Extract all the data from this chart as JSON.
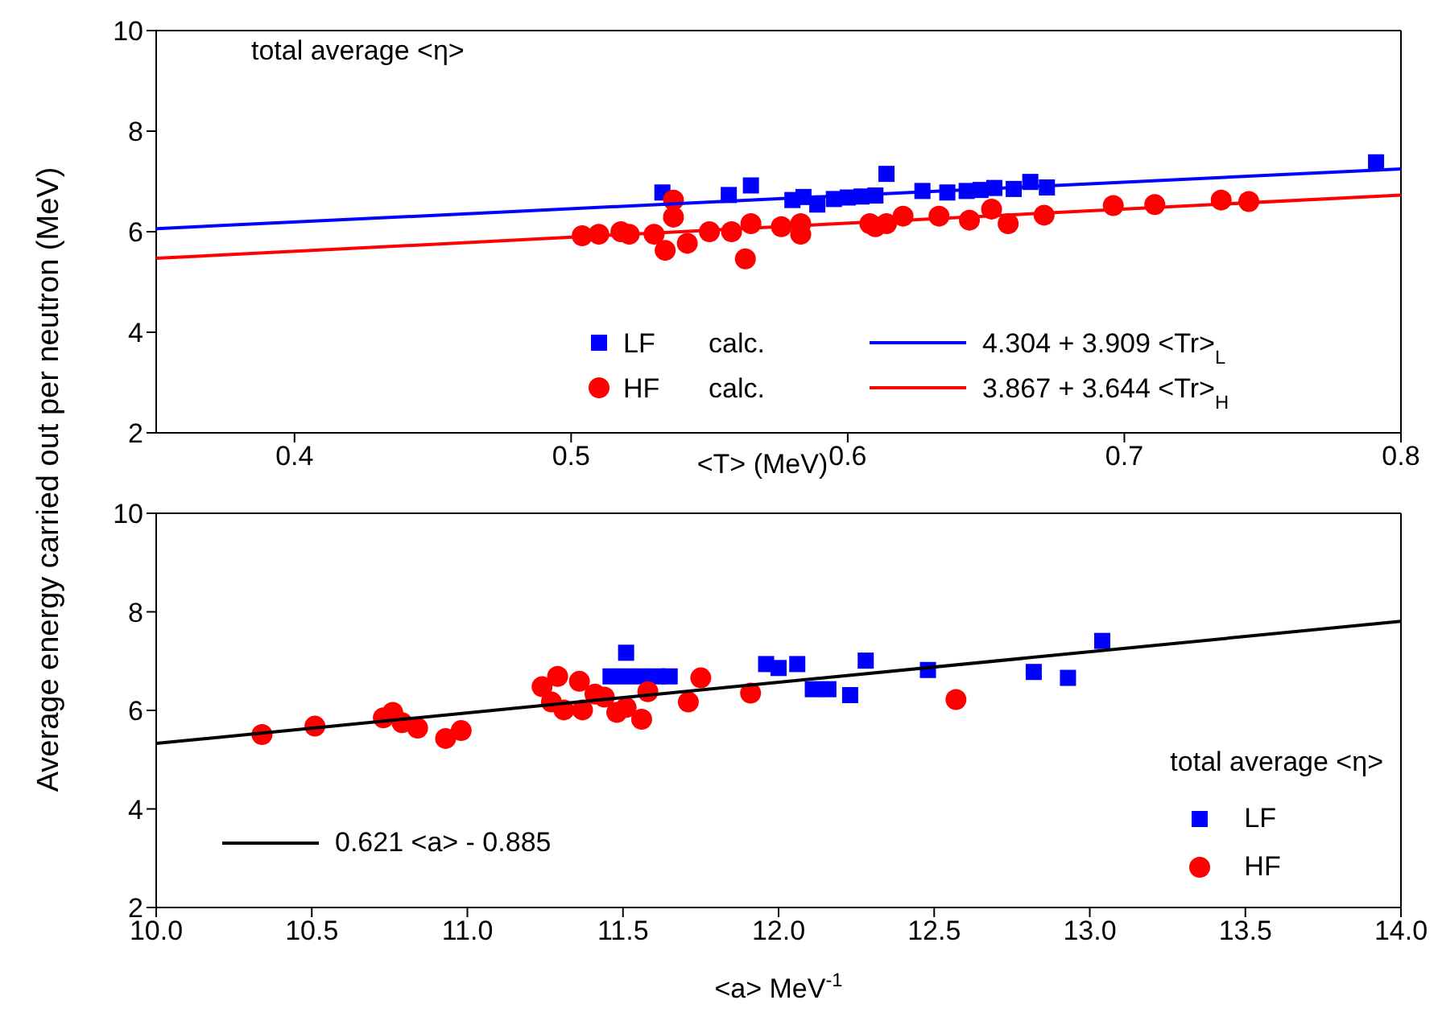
{
  "chart_data": [
    {
      "type": "scatter",
      "ylabel": "Average energy carried out per neutron (MeV)",
      "xlabel": "<T> (MeV)",
      "xlim": [
        0.35,
        0.8
      ],
      "xticks": [
        0.4,
        0.5,
        0.6,
        0.7,
        0.8
      ],
      "ylim": [
        2,
        10
      ],
      "yticks": [
        2,
        4,
        6,
        8,
        10
      ],
      "legend": "bottom right",
      "annotations": [
        "total average <η>",
        "calc.",
        "calc."
      ],
      "series": [
        {
          "name": "LF",
          "type": "scatter",
          "marker": "square",
          "color": "#0000ff",
          "x": [
            0.533,
            0.557,
            0.565,
            0.58,
            0.584,
            0.589,
            0.595,
            0.6,
            0.605,
            0.61,
            0.614,
            0.627,
            0.636,
            0.643,
            0.648,
            0.653,
            0.66,
            0.666,
            0.672,
            0.791
          ],
          "values": [
            6.78,
            6.73,
            6.92,
            6.63,
            6.69,
            6.54,
            6.65,
            6.68,
            6.7,
            6.72,
            7.15,
            6.81,
            6.78,
            6.81,
            6.83,
            6.87,
            6.85,
            6.99,
            6.88,
            7.38
          ]
        },
        {
          "name": "HF",
          "type": "scatter",
          "marker": "circle",
          "color": "#ff0000",
          "x": [
            0.504,
            0.51,
            0.518,
            0.521,
            0.53,
            0.534,
            0.537,
            0.537,
            0.542,
            0.55,
            0.558,
            0.563,
            0.565,
            0.576,
            0.583,
            0.583,
            0.608,
            0.61,
            0.614,
            0.62,
            0.633,
            0.644,
            0.652,
            0.658,
            0.671,
            0.696,
            0.711,
            0.735,
            0.745
          ],
          "values": [
            5.92,
            5.95,
            6.0,
            5.95,
            5.95,
            5.63,
            6.63,
            6.29,
            5.77,
            6.0,
            6.0,
            5.46,
            6.16,
            6.1,
            6.16,
            5.95,
            6.16,
            6.1,
            6.16,
            6.31,
            6.31,
            6.23,
            6.45,
            6.16,
            6.33,
            6.52,
            6.54,
            6.63,
            6.6
          ]
        },
        {
          "name": "4.304 + 3.909 <Tr>$_{L}$",
          "type": "line",
          "color": "#0000ff",
          "x": [
            0.35,
            0.8
          ],
          "values": [
            6.06,
            7.25
          ]
        },
        {
          "name": "3.867 + 3.644 <Tr>$_{H}$",
          "type": "line",
          "color": "#ff0000",
          "x": [
            0.35,
            0.8
          ],
          "values": [
            5.47,
            6.73
          ]
        }
      ]
    },
    {
      "type": "scatter",
      "xlabel": "<a> MeV$^{-1}$",
      "xlim": [
        10,
        14
      ],
      "xticks": [
        {
          "value": 10,
          "label": "10.0"
        },
        {
          "value": 10.5,
          "label": "10.5"
        },
        {
          "value": 11,
          "label": "11.0"
        },
        {
          "value": 11.5,
          "label": "11.5"
        },
        {
          "value": 12,
          "label": "12.0"
        },
        {
          "value": 12.5,
          "label": "12.5"
        },
        {
          "value": 13,
          "label": "13.0"
        },
        {
          "value": 13.5,
          "label": "13.5"
        },
        {
          "value": 14,
          "label": "14.0"
        }
      ],
      "ylim": [
        2,
        10
      ],
      "yticks": [
        2,
        4,
        6,
        8,
        10
      ],
      "legend": "bottom right",
      "legend_title": "total average <η>",
      "series": [
        {
          "name": "LF",
          "type": "scatter",
          "marker": "square",
          "color": "#0000ff",
          "x": [
            11.46,
            11.51,
            11.51,
            11.56,
            11.61,
            11.65,
            11.96,
            12.0,
            12.06,
            12.11,
            12.16,
            12.23,
            12.28,
            12.48,
            12.82,
            12.93,
            13.04
          ],
          "values": [
            6.69,
            6.69,
            7.17,
            6.69,
            6.69,
            6.69,
            6.94,
            6.86,
            6.94,
            6.43,
            6.43,
            6.31,
            7.01,
            6.82,
            6.78,
            6.66,
            7.41
          ]
        },
        {
          "name": "HF",
          "type": "scatter",
          "marker": "circle",
          "color": "#ff0000",
          "x": [
            10.34,
            10.51,
            10.73,
            10.76,
            10.79,
            10.84,
            10.93,
            10.98,
            11.24,
            11.29,
            11.36,
            11.27,
            11.31,
            11.37,
            11.41,
            11.44,
            11.48,
            11.51,
            11.56,
            11.58,
            11.71,
            11.75,
            11.91,
            12.57
          ],
          "values": [
            5.51,
            5.68,
            5.85,
            5.96,
            5.75,
            5.64,
            5.43,
            5.59,
            6.48,
            6.69,
            6.59,
            6.17,
            6.01,
            6.01,
            6.33,
            6.27,
            5.96,
            6.06,
            5.82,
            6.38,
            6.17,
            6.66,
            6.35,
            6.22
          ]
        },
        {
          "name": "0.621 <a> - 0.885",
          "type": "line",
          "color": "#000000",
          "x": [
            10,
            14
          ],
          "values": [
            5.33,
            7.81
          ]
        }
      ]
    }
  ]
}
